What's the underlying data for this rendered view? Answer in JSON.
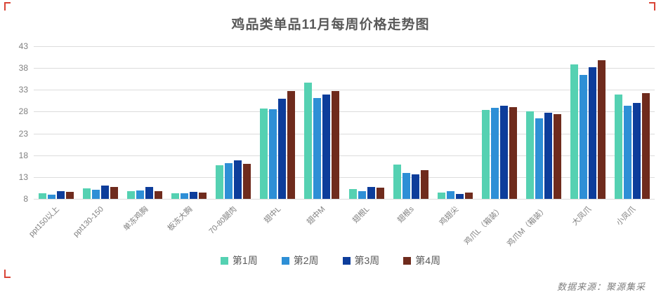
{
  "title": "鸡品类单品11月每周价格走势图",
  "source": "数据来源：聚源集采",
  "chart_data": {
    "type": "bar",
    "title": "鸡品类单品11月每周价格走势图",
    "categories": [
      "ppt150以上",
      "ppt130-150",
      "单冻鸡胸",
      "板冻大胸",
      "70-80腿肉",
      "翅中L",
      "翅中M",
      "翅根L",
      "翅根s",
      "鸡翅尖",
      "鸡爪L（箱装）",
      "鸡爪M（箱装）",
      "大凤爪",
      "小凤爪"
    ],
    "series": [
      {
        "name": "第1周",
        "color": "#55d1b2",
        "values": [
          9.3,
          10.4,
          9.8,
          9.3,
          15.7,
          28.7,
          34.6,
          10.3,
          15.9,
          9.4,
          28.4,
          28.1,
          38.9,
          31.9
        ]
      },
      {
        "name": "第2周",
        "color": "#2e8fd6",
        "values": [
          9.0,
          10.1,
          9.9,
          9.3,
          16.2,
          28.6,
          31.1,
          9.8,
          13.9,
          9.8,
          28.9,
          26.5,
          36.4,
          29.3
        ]
      },
      {
        "name": "第3周",
        "color": "#0d3d9b",
        "values": [
          9.8,
          11.0,
          10.7,
          9.6,
          16.9,
          31.0,
          31.9,
          10.7,
          13.6,
          9.1,
          29.3,
          27.7,
          38.2,
          30.0
        ]
      },
      {
        "name": "第4周",
        "color": "#6f2b1d",
        "values": [
          9.6,
          10.7,
          9.7,
          9.4,
          16.1,
          32.7,
          32.7,
          10.6,
          14.6,
          9.4,
          29.0,
          27.4,
          39.8,
          32.2
        ]
      }
    ],
    "ylim": [
      8,
      43
    ],
    "yticks": [
      43,
      38,
      33,
      28,
      23,
      18,
      13,
      8
    ],
    "grid": true,
    "legend_position": "bottom",
    "source_note": "数据来源：聚源集采"
  }
}
